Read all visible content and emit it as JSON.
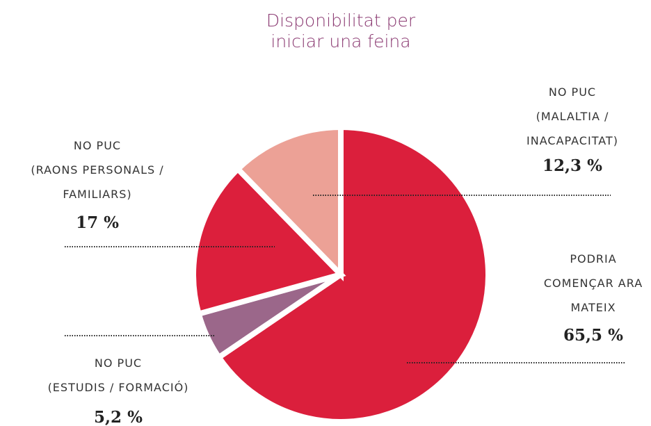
{
  "chart_data": {
    "type": "pie",
    "title": "Disponibilitat per\niniciar una feina",
    "categories": [
      "PODRIA\nCOMENÇAR ARA\nMATEIX",
      "NO PUC\n(ESTUDIS / FORMACIÓ)",
      "NO PUC\n(RAONS PERSONALS /\nFAMILIARS)",
      "NO PUC\n(MALALTIA /\nINACAPACITAT)"
    ],
    "values": [
      65.5,
      5.2,
      17,
      12.3
    ],
    "value_labels": [
      "65,5 %",
      "5,2 %",
      "17 %",
      "12,3 %"
    ],
    "colors": [
      "#db1f3c",
      "#9b678a",
      "#dc1f3c",
      "#eca196"
    ]
  }
}
